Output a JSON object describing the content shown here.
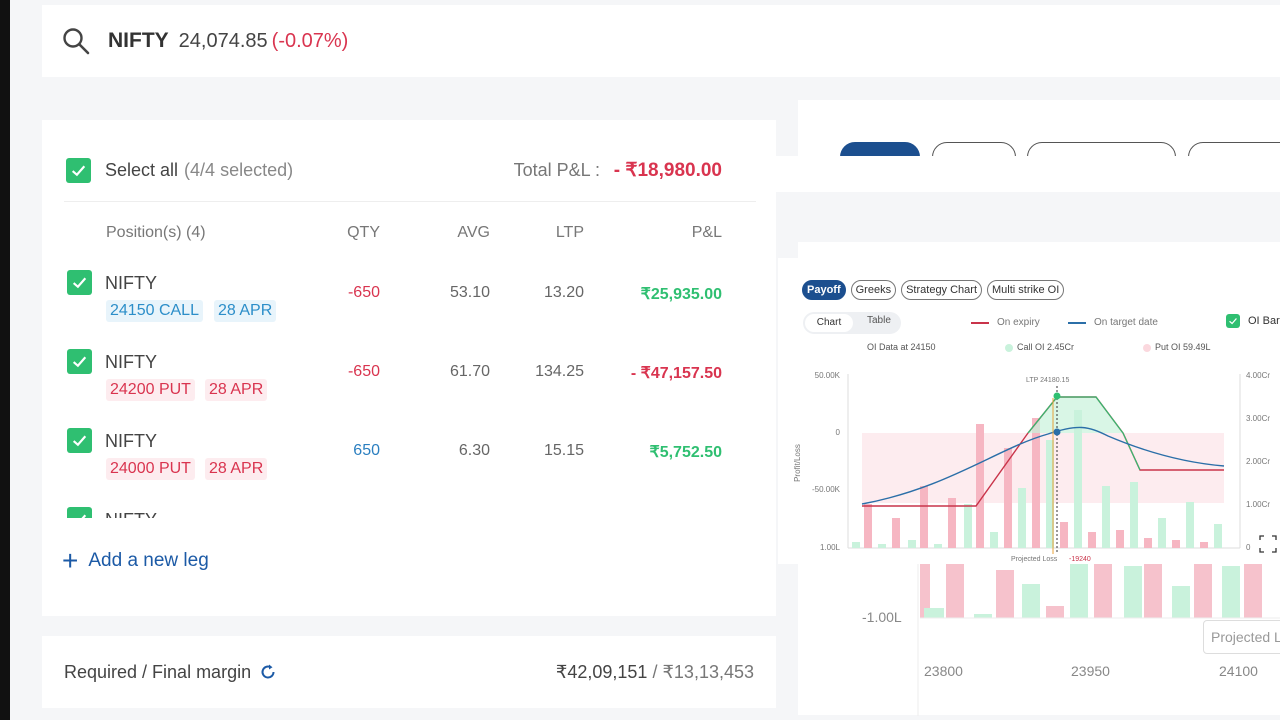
{
  "search": {
    "symbol": "NIFTY",
    "price": "24,074.85",
    "change": "(-0.07%)"
  },
  "positions": {
    "select_all_label": "Select all",
    "selected_count": "(4/4 selected)",
    "total_pnl_label": "Total P&L :",
    "total_pnl_value": "- ₹18,980.00",
    "headers": {
      "position": "Position(s) (4)",
      "qty": "QTY",
      "avg": "AVG",
      "ltp": "LTP",
      "pnl": "P&L"
    },
    "rows": [
      {
        "name": "NIFTY",
        "strike": "24150 CALL",
        "expiry": "28 APR",
        "qty": "-650",
        "avg": "53.10",
        "ltp": "13.20",
        "pnl": "₹25,935.00"
      },
      {
        "name": "NIFTY",
        "strike": "24200 PUT",
        "expiry": "28 APR",
        "qty": "-650",
        "avg": "61.70",
        "ltp": "134.25",
        "pnl": "- ₹47,157.50"
      },
      {
        "name": "NIFTY",
        "strike": "24000 PUT",
        "expiry": "28 APR",
        "qty": "650",
        "avg": "6.30",
        "ltp": "15.15",
        "pnl": "₹5,752.50"
      },
      {
        "name": "NIFTY"
      }
    ],
    "add_leg_label": "Add a new leg"
  },
  "margin": {
    "label": "Required / Final margin",
    "required": "₹42,09,151",
    "separator": "/",
    "final": "₹13,13,453"
  },
  "chart_card": {
    "tabs": [
      "Payoff",
      "Greeks",
      "Strategy Chart",
      "Multi strike OI"
    ],
    "toggle": [
      "Chart",
      "Table"
    ],
    "legend_expiry": "On expiry",
    "legend_target": "On target date",
    "oi_bars_label": "OI Bar",
    "oi_data_label": "OI Data at 24150",
    "call_oi_label": "Call OI",
    "call_oi_value": "2.45Cr",
    "put_oi_label": "Put OI",
    "put_oi_value": "59.49L",
    "ltp_marker": "LTP 24180.15",
    "y_left_ticks": [
      "50.00K",
      "0",
      "-50.00K",
      "1.00L"
    ],
    "y_right_ticks": [
      "4.00Cr",
      "3.00Cr",
      "2.00Cr",
      "1.00Cr",
      "0"
    ],
    "y_axis_label": "Profit/Loss",
    "projected_loss_label": "Projected Loss",
    "projected_loss_value": "-19240",
    "colors": {
      "expiry": "#c9344a",
      "target": "#2b6fa8",
      "call_oi": "#9ee6bf",
      "put_oi": "#f6b6c2",
      "accent": "#1c4f8f"
    }
  },
  "lower_chart": {
    "y_tick": "-1.00L",
    "x_ticks": [
      "23800",
      "23950",
      "24100"
    ],
    "projected_label": "Projected L"
  }
}
